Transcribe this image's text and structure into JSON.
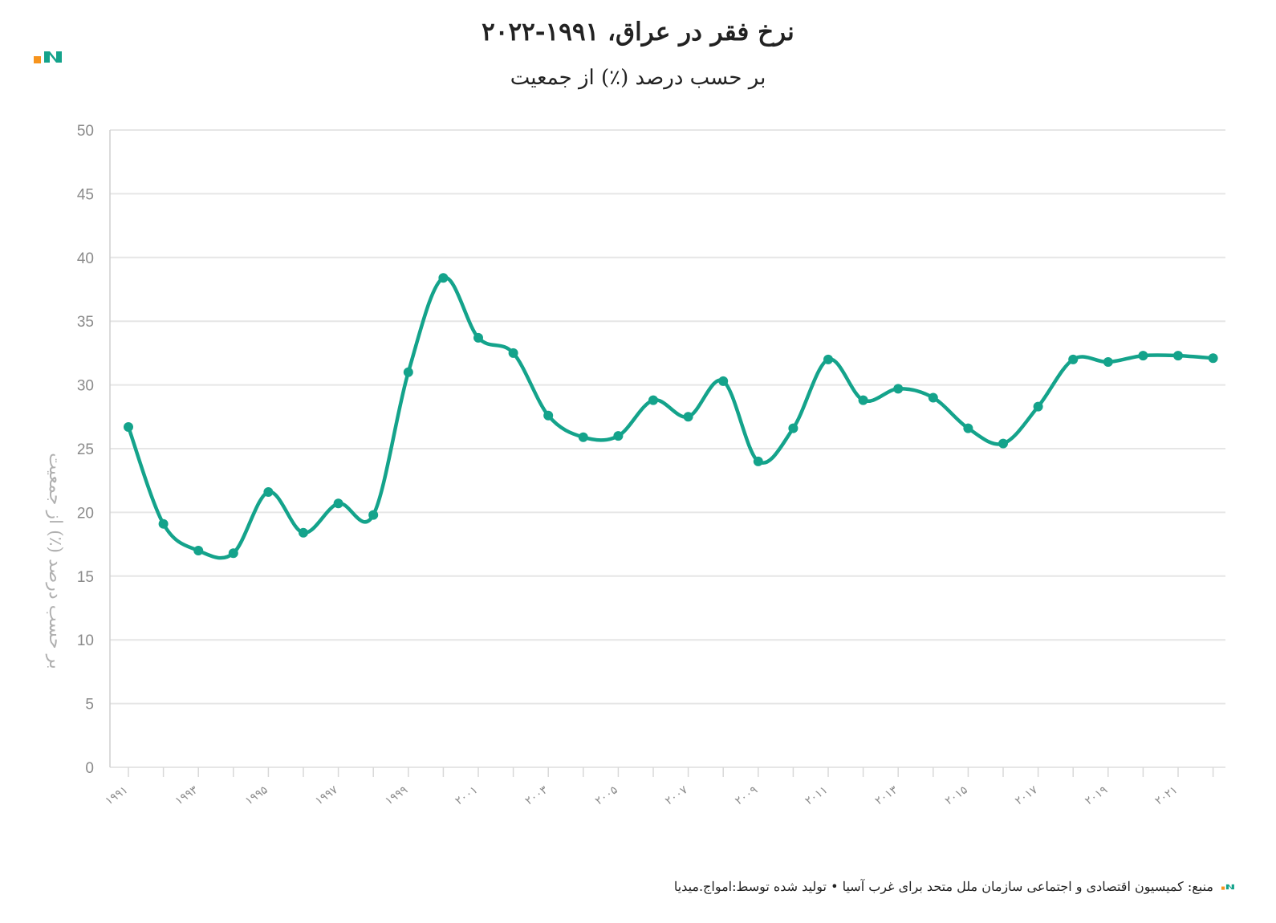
{
  "header": {
    "title": "نرخ فقر در عراق، ۱۹۹۱-۲۰۲۲",
    "subtitle": "بر حسب درصد (٪) از جمعیت"
  },
  "footer": {
    "source": "منبع: کمیسیون اقتصادی و اجتماعی سازمان ملل متحد برای غرب آسیا • تولید شده توسط:امواج.میدیا"
  },
  "colors": {
    "line": "#14a38b",
    "grid": "#e6e6e6",
    "logo_orange": "#f7941d",
    "logo_green": "#14a38b"
  },
  "chart_data": {
    "type": "line",
    "title": "نرخ فقر در عراق، ۱۹۹۱-۲۰۲۲",
    "subtitle": "بر حسب درصد (٪) از جمعیت",
    "xlabel": "",
    "ylabel": "بر حسب درصد (٪) از جمعیت",
    "ylim": [
      0,
      50
    ],
    "yticks": [
      0,
      5,
      10,
      15,
      20,
      25,
      30,
      35,
      40,
      45,
      50
    ],
    "x": [
      1991,
      1992,
      1993,
      1994,
      1995,
      1996,
      1997,
      1998,
      1999,
      2000,
      2001,
      2002,
      2003,
      2004,
      2005,
      2006,
      2007,
      2008,
      2009,
      2010,
      2011,
      2012,
      2013,
      2014,
      2015,
      2016,
      2017,
      2018,
      2019,
      2020,
      2021,
      2022
    ],
    "x_tick_labels": [
      "۱۹۹۱",
      "۱۹۹۳",
      "۱۹۹۵",
      "۱۹۹۷",
      "۱۹۹۹",
      "۲۰۰۱",
      "۲۰۰۳",
      "۲۰۰۵",
      "۲۰۰۷",
      "۲۰۰۹",
      "۲۰۱۱",
      "۲۰۱۳",
      "۲۰۱۵",
      "۲۰۱۷",
      "۲۰۱۹",
      "۲۰۲۱"
    ],
    "x_tick_years": [
      1991,
      1993,
      1995,
      1997,
      1999,
      2001,
      2003,
      2005,
      2007,
      2009,
      2011,
      2013,
      2015,
      2017,
      2019,
      2021
    ],
    "series": [
      {
        "values": [
          26.7,
          19.1,
          17.0,
          16.8,
          21.6,
          18.4,
          20.7,
          19.8,
          31.0,
          38.4,
          33.7,
          32.5,
          27.6,
          25.9,
          26.0,
          28.8,
          27.5,
          30.3,
          24.0,
          26.6,
          32.0,
          28.8,
          29.7,
          29.0,
          26.6,
          25.4,
          28.3,
          32.0,
          31.8,
          32.3,
          32.3,
          32.1
        ]
      }
    ],
    "grid": true,
    "legend": "none"
  }
}
